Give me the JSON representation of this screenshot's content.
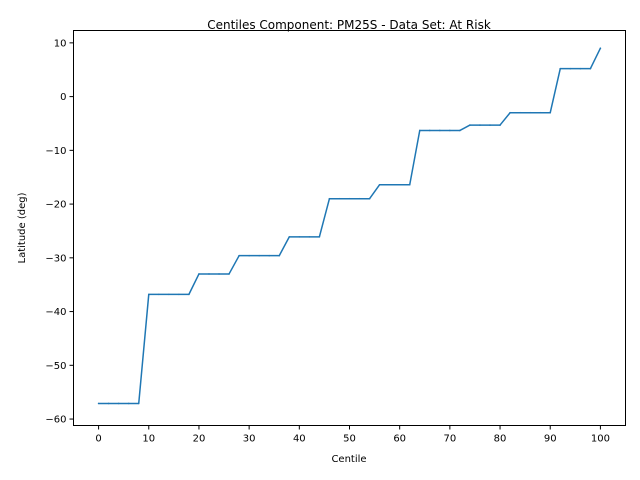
{
  "chart_data": {
    "type": "line",
    "title": "Centiles Component: PM25S - Data Set: At Risk",
    "xlabel": "Centile",
    "ylabel": "Latitude (deg)",
    "xlim": [
      -5,
      105
    ],
    "ylim": [
      -61.2,
      12.3
    ],
    "xticks": [
      0,
      10,
      20,
      30,
      40,
      50,
      60,
      70,
      80,
      90,
      100
    ],
    "yticks": [
      -60,
      -50,
      -40,
      -30,
      -20,
      -10,
      0,
      10
    ],
    "xtick_labels": [
      "0",
      "10",
      "20",
      "30",
      "40",
      "50",
      "60",
      "70",
      "80",
      "90",
      "100"
    ],
    "ytick_labels": [
      "−60",
      "−50",
      "−40",
      "−30",
      "−20",
      "−10",
      "0",
      "10"
    ],
    "grid": false,
    "legend": "none",
    "colors": {
      "line": "#1f77b4",
      "axes": "#000000"
    },
    "series": [
      {
        "x": [
          0,
          2,
          4,
          6,
          8,
          10,
          12,
          14,
          16,
          18,
          20,
          22,
          24,
          26,
          28,
          30,
          32,
          34,
          36,
          38,
          40,
          42,
          44,
          46,
          48,
          50,
          52,
          54,
          56,
          58,
          60,
          62,
          64,
          66,
          68,
          70,
          72,
          74,
          76,
          78,
          80,
          82,
          84,
          86,
          88,
          90,
          92,
          94,
          96,
          98,
          100
        ],
        "values": [
          -57.1,
          -57.1,
          -57.1,
          -57.1,
          -57.1,
          -36.8,
          -36.8,
          -36.8,
          -36.8,
          -36.8,
          -33.0,
          -33.0,
          -33.0,
          -33.0,
          -29.6,
          -29.6,
          -29.6,
          -29.6,
          -29.6,
          -26.1,
          -26.1,
          -26.1,
          -26.1,
          -19.0,
          -19.0,
          -19.0,
          -19.0,
          -19.0,
          -16.4,
          -16.4,
          -16.4,
          -16.4,
          -6.3,
          -6.3,
          -6.3,
          -6.3,
          -6.3,
          -5.3,
          -5.3,
          -5.3,
          -5.3,
          -3.0,
          -3.0,
          -3.0,
          -3.0,
          -3.0,
          5.2,
          5.2,
          5.2,
          5.2,
          9.0
        ]
      }
    ]
  }
}
